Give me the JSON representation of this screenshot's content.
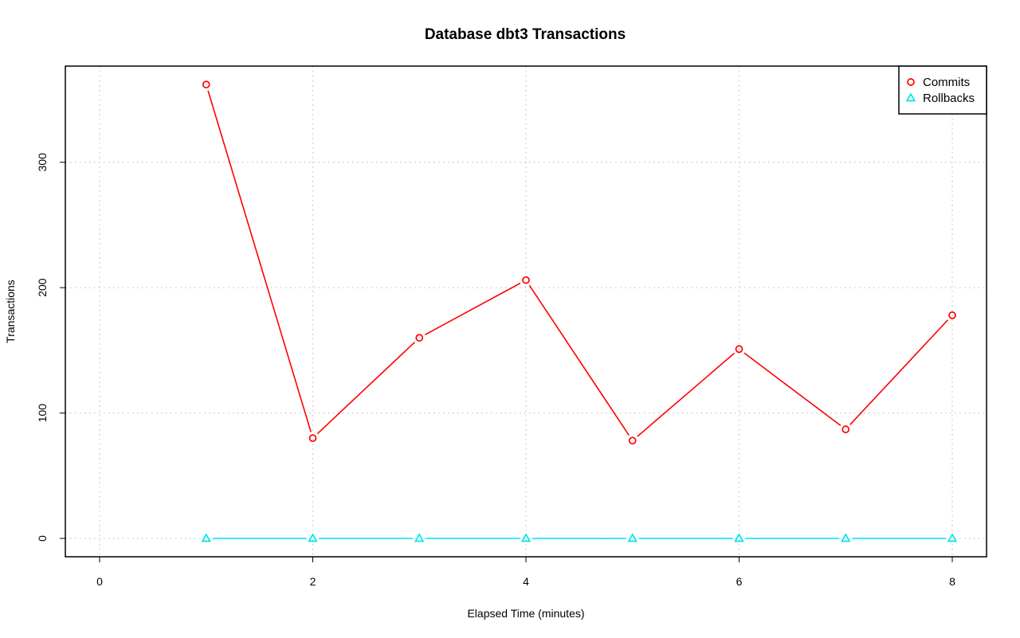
{
  "chart_data": {
    "type": "line",
    "title": "Database dbt3 Transactions",
    "xlabel": "Elapsed Time (minutes)",
    "ylabel": "Transactions",
    "xlim": [
      0,
      8
    ],
    "ylim": [
      0,
      360
    ],
    "x_ticks": [
      0,
      2,
      4,
      6,
      8
    ],
    "y_ticks": [
      0,
      100,
      200,
      300
    ],
    "grid": true,
    "legend_position": "top-right",
    "x": [
      1,
      2,
      3,
      4,
      5,
      6,
      7,
      8
    ],
    "series": [
      {
        "name": "Commits",
        "values": [
          362,
          80,
          160,
          206,
          78,
          151,
          87,
          178
        ],
        "color": "#ff0000",
        "marker": "circle"
      },
      {
        "name": "Rollbacks",
        "values": [
          0,
          0,
          0,
          0,
          0,
          0,
          0,
          0
        ],
        "color": "#00e5e5",
        "marker": "triangle"
      }
    ]
  }
}
